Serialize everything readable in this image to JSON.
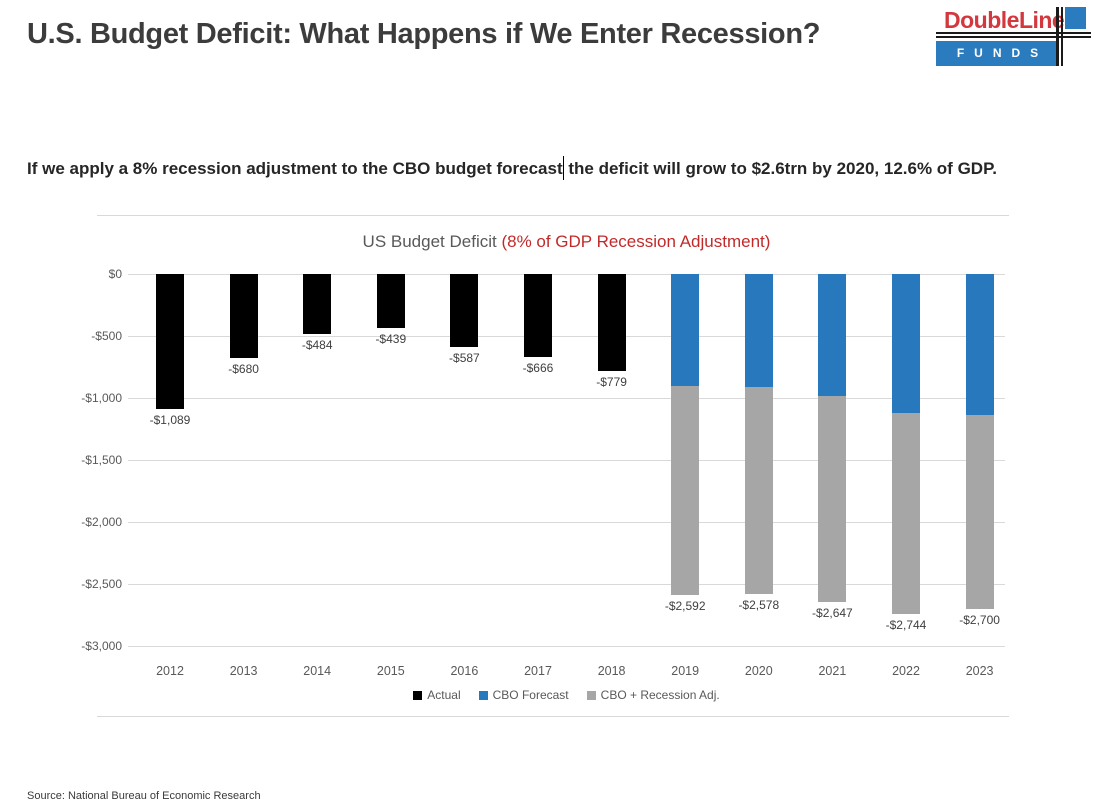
{
  "header": {
    "title": "U.S. Budget Deficit: What Happens if We Enter Recession?",
    "logo": {
      "brand": "DoubleLine",
      "funds": "FUNDS"
    }
  },
  "subtitle": {
    "part1": "If we apply a 8% recession adjustment to the CBO budget forecast",
    "part2": " the deficit will grow to $2.6trn by 2020, 12.6% of GDP."
  },
  "chart": {
    "title_plain": "US Budget Deficit ",
    "title_red": "(8% of GDP Recession Adjustment)"
  },
  "source": "Source: National Bureau of Economic Research",
  "colors": {
    "actual_black": "#000000",
    "cbo_blue": "#2878BE",
    "recession_gray": "#A6A6A6",
    "accent_red": "#C22A2A",
    "logo_red": "#D2383E",
    "logo_blue": "#2B7BBF",
    "gridline": "#D9D9D9"
  },
  "chart_data": {
    "type": "bar",
    "stacked": true,
    "title": "US Budget Deficit (8% of GDP Recession Adjustment)",
    "xlabel": "",
    "ylabel": "",
    "ylim": [
      -3000,
      0
    ],
    "grid": true,
    "legend_position": "bottom",
    "categories": [
      "2012",
      "2013",
      "2014",
      "2015",
      "2016",
      "2017",
      "2018",
      "2019",
      "2020",
      "2021",
      "2022",
      "2023"
    ],
    "series": [
      {
        "name": "Actual",
        "color": "#000000",
        "values": [
          -1089,
          -680,
          -484,
          -439,
          -587,
          -666,
          -779,
          null,
          null,
          null,
          null,
          null
        ]
      },
      {
        "name": "CBO Forecast",
        "color": "#2878BE",
        "values": [
          null,
          null,
          null,
          null,
          null,
          null,
          null,
          -900,
          -910,
          -980,
          -1120,
          -1140
        ]
      },
      {
        "name": "CBO + Recession Adj.",
        "color": "#A6A6A6",
        "values": [
          null,
          null,
          null,
          null,
          null,
          null,
          null,
          -1692,
          -1668,
          -1667,
          -1624,
          -1560
        ]
      }
    ],
    "totals": [
      -1089,
      -680,
      -484,
      -439,
      -587,
      -666,
      -779,
      -2592,
      -2578,
      -2647,
      -2744,
      -2700
    ],
    "bar_total_labels": [
      "-$1,089",
      "-$680",
      "-$484",
      "-$439",
      "-$587",
      "-$666",
      "-$779",
      "-$2,592",
      "-$2,578",
      "-$2,647",
      "-$2,744",
      "-$2,700"
    ],
    "y_ticks": [
      {
        "label": "$0",
        "value": 0
      },
      {
        "label": "-$500",
        "value": -500
      },
      {
        "label": "-$1,000",
        "value": -1000
      },
      {
        "label": "-$1,500",
        "value": -1500
      },
      {
        "label": "-$2,000",
        "value": -2000
      },
      {
        "label": "-$2,500",
        "value": -2500
      },
      {
        "label": "-$3,000",
        "value": -3000
      }
    ]
  }
}
